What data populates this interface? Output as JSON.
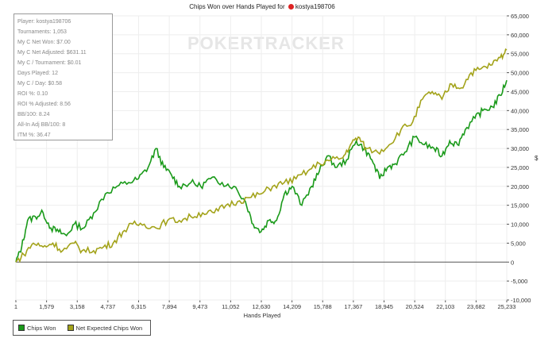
{
  "chart_data": {
    "type": "line",
    "title": "Chips Won over Hands Played for",
    "player_name": "kostya198706",
    "watermark": "POKERTRACKER",
    "xlabel": "Hands Played",
    "ylabel": "$",
    "xlim": [
      1,
      25233
    ],
    "ylim": [
      -10000,
      65000
    ],
    "x_ticks": [
      "1",
      "1,579",
      "3,158",
      "4,737",
      "6,315",
      "7,894",
      "9,473",
      "11,052",
      "12,630",
      "14,209",
      "15,788",
      "17,367",
      "18,945",
      "20,524",
      "22,103",
      "23,682",
      "25,233"
    ],
    "y_ticks": [
      -10000,
      -5000,
      0,
      5000,
      10000,
      15000,
      20000,
      25000,
      30000,
      35000,
      40000,
      45000,
      50000,
      55000,
      60000,
      65000
    ],
    "y_tick_labels": [
      "-10,000",
      "-5,000",
      "0",
      "5,000",
      "10,000",
      "15,000",
      "20,000",
      "25,000",
      "30,000",
      "35,000",
      "40,000",
      "45,000",
      "50,000",
      "55,000",
      "60,000",
      "65,000"
    ],
    "legend_position": "bottom-left",
    "series": [
      {
        "name": "Chips Won",
        "color": "#1a9a1a",
        "points": [
          [
            1,
            0
          ],
          [
            300,
            4000
          ],
          [
            600,
            11000
          ],
          [
            1000,
            12000
          ],
          [
            1400,
            13000
          ],
          [
            1800,
            9000
          ],
          [
            2200,
            8000
          ],
          [
            2600,
            7000
          ],
          [
            3000,
            10000
          ],
          [
            3500,
            9000
          ],
          [
            4000,
            13000
          ],
          [
            4600,
            18000
          ],
          [
            5200,
            20000
          ],
          [
            5800,
            21000
          ],
          [
            6300,
            22000
          ],
          [
            6800,
            25000
          ],
          [
            7200,
            30000
          ],
          [
            7600,
            25000
          ],
          [
            8000,
            23000
          ],
          [
            8400,
            20000
          ],
          [
            9000,
            21000
          ],
          [
            9500,
            20000
          ],
          [
            10000,
            22000
          ],
          [
            10600,
            21000
          ],
          [
            11200,
            20000
          ],
          [
            11800,
            16000
          ],
          [
            12200,
            10000
          ],
          [
            12600,
            8000
          ],
          [
            13000,
            11000
          ],
          [
            13400,
            11000
          ],
          [
            13800,
            18000
          ],
          [
            14200,
            20000
          ],
          [
            14700,
            15000
          ],
          [
            15200,
            20000
          ],
          [
            15600,
            24000
          ],
          [
            16000,
            28000
          ],
          [
            16500,
            25000
          ],
          [
            17000,
            27000
          ],
          [
            17500,
            32000
          ],
          [
            17900,
            30000
          ],
          [
            18300,
            27000
          ],
          [
            18700,
            22000
          ],
          [
            19100,
            25000
          ],
          [
            19500,
            26000
          ],
          [
            20000,
            29000
          ],
          [
            20500,
            33000
          ],
          [
            21000,
            31000
          ],
          [
            21500,
            30000
          ],
          [
            21900,
            28000
          ],
          [
            22300,
            32000
          ],
          [
            22700,
            31000
          ],
          [
            23100,
            35000
          ],
          [
            23600,
            38000
          ],
          [
            24000,
            40000
          ],
          [
            24500,
            41000
          ],
          [
            24900,
            44000
          ],
          [
            25233,
            48000
          ]
        ]
      },
      {
        "name": "Net Expected Chips Won",
        "color": "#a3a31a",
        "points": [
          [
            1,
            0
          ],
          [
            400,
            2000
          ],
          [
            900,
            5000
          ],
          [
            1400,
            4000
          ],
          [
            1900,
            5000
          ],
          [
            2400,
            3000
          ],
          [
            3000,
            5000
          ],
          [
            3400,
            3000
          ],
          [
            4000,
            3000
          ],
          [
            4500,
            4000
          ],
          [
            5000,
            5000
          ],
          [
            5500,
            8000
          ],
          [
            6000,
            10000
          ],
          [
            6600,
            10000
          ],
          [
            7200,
            9000
          ],
          [
            7800,
            11000
          ],
          [
            8400,
            11000
          ],
          [
            9000,
            12000
          ],
          [
            9600,
            13000
          ],
          [
            10200,
            13000
          ],
          [
            10800,
            15000
          ],
          [
            11400,
            16000
          ],
          [
            12000,
            17000
          ],
          [
            12600,
            18000
          ],
          [
            13200,
            20000
          ],
          [
            13800,
            21000
          ],
          [
            14400,
            22000
          ],
          [
            15000,
            24000
          ],
          [
            15600,
            26000
          ],
          [
            16200,
            27000
          ],
          [
            16800,
            27500
          ],
          [
            17200,
            31000
          ],
          [
            17600,
            33000
          ],
          [
            18000,
            30000
          ],
          [
            18600,
            29000
          ],
          [
            19200,
            31000
          ],
          [
            19800,
            35000
          ],
          [
            20400,
            37000
          ],
          [
            20900,
            43000
          ],
          [
            21400,
            45000
          ],
          [
            21900,
            43000
          ],
          [
            22400,
            47000
          ],
          [
            22900,
            46000
          ],
          [
            23400,
            50000
          ],
          [
            23900,
            51000
          ],
          [
            24400,
            52000
          ],
          [
            24900,
            54000
          ],
          [
            25233,
            56000
          ]
        ]
      }
    ]
  },
  "stats": [
    "Player: kostya198706",
    "Tournaments: 1,053",
    "My C Net Won: $7.00",
    "My C Net Adjusted: $631.11",
    "My C / Tournament: $0.01",
    "Days Played: 12",
    "My C / Day: $0.58",
    "ROI %: 0.10",
    "ROI % Adjusted: 8.56",
    "BB/100: 8.24",
    "All-In Adj BB/100: 8",
    "ITM %: 36.47"
  ]
}
